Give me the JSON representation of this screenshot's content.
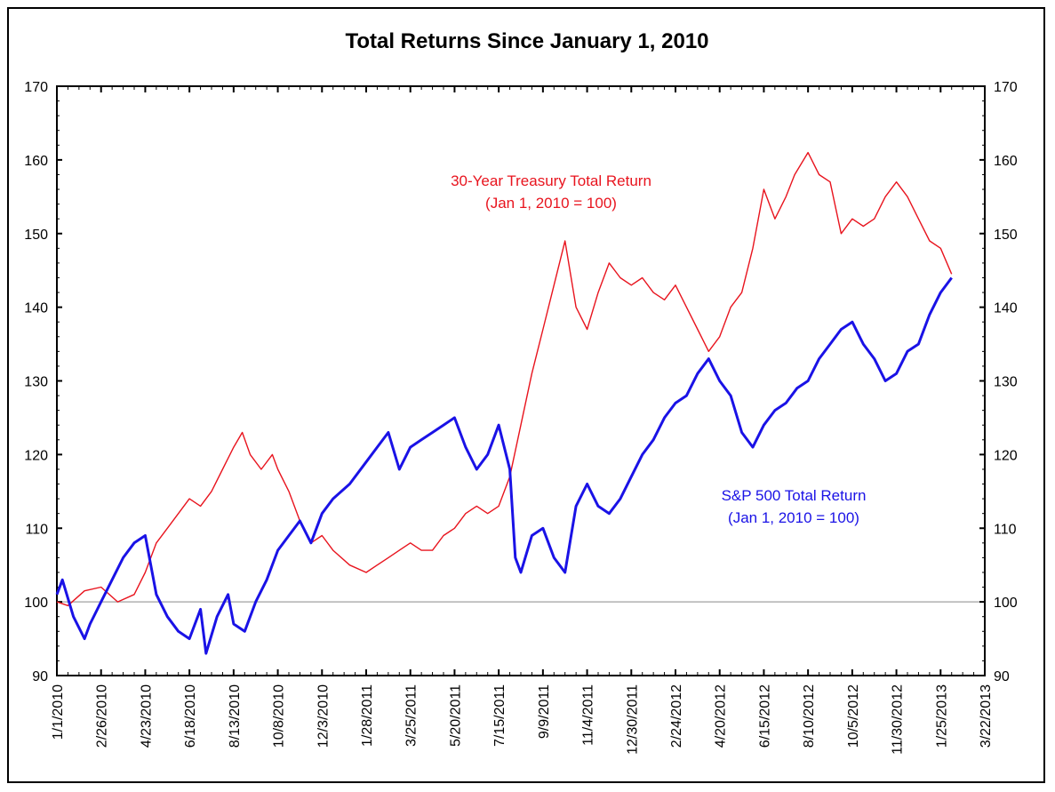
{
  "chart_data": {
    "type": "line",
    "title": "Total Returns Since January 1, 2010",
    "xlabel": "",
    "ylabel": "",
    "x_ticks": [
      "1/1/2010",
      "2/26/2010",
      "4/23/2010",
      "6/18/2010",
      "8/13/2010",
      "10/8/2010",
      "12/3/2010",
      "1/28/2011",
      "3/25/2011",
      "5/20/2011",
      "7/15/2011",
      "9/9/2011",
      "11/4/2011",
      "12/30/2011",
      "2/24/2012",
      "4/20/2012",
      "6/15/2012",
      "8/10/2012",
      "10/5/2012",
      "11/30/2012",
      "1/25/2013",
      "3/22/2013"
    ],
    "xlim": [
      "2010-01-01",
      "2013-03-22"
    ],
    "y_ticks": [
      90,
      100,
      110,
      120,
      130,
      140,
      150,
      160,
      170
    ],
    "ylim": [
      90,
      170
    ],
    "reference_line": 100,
    "grid": false,
    "axes": [
      "left",
      "right"
    ],
    "annotations": [
      {
        "lines": [
          "30-Year Treasury Total Return",
          "(Jan 1, 2010 = 100)"
        ],
        "color": "#e8141e"
      },
      {
        "lines": [
          "S&P 500 Total Return",
          "(Jan 1, 2010 = 100)"
        ],
        "color": "#1a12e6"
      }
    ],
    "series": [
      {
        "name": "30-Year Treasury Total Return",
        "color": "#e8141e",
        "x": [
          "2010-01-01",
          "2010-01-15",
          "2010-02-05",
          "2010-02-26",
          "2010-03-19",
          "2010-04-09",
          "2010-04-23",
          "2010-05-07",
          "2010-05-21",
          "2010-06-04",
          "2010-06-18",
          "2010-07-02",
          "2010-07-16",
          "2010-07-30",
          "2010-08-13",
          "2010-08-24",
          "2010-09-03",
          "2010-09-17",
          "2010-10-01",
          "2010-10-08",
          "2010-10-22",
          "2010-11-05",
          "2010-11-19",
          "2010-12-03",
          "2010-12-17",
          "2011-01-07",
          "2011-01-28",
          "2011-02-11",
          "2011-02-25",
          "2011-03-11",
          "2011-03-25",
          "2011-04-08",
          "2011-04-22",
          "2011-05-06",
          "2011-05-20",
          "2011-06-03",
          "2011-06-17",
          "2011-07-01",
          "2011-07-15",
          "2011-07-29",
          "2011-08-12",
          "2011-08-26",
          "2011-09-09",
          "2011-09-23",
          "2011-10-07",
          "2011-10-21",
          "2011-11-04",
          "2011-11-18",
          "2011-12-02",
          "2011-12-16",
          "2011-12-30",
          "2012-01-13",
          "2012-01-27",
          "2012-02-10",
          "2012-02-24",
          "2012-03-09",
          "2012-03-23",
          "2012-04-06",
          "2012-04-20",
          "2012-05-04",
          "2012-05-18",
          "2012-06-01",
          "2012-06-15",
          "2012-06-29",
          "2012-07-13",
          "2012-07-24",
          "2012-08-10",
          "2012-08-24",
          "2012-09-07",
          "2012-09-21",
          "2012-10-05",
          "2012-10-19",
          "2012-11-02",
          "2012-11-16",
          "2012-11-30",
          "2012-12-14",
          "2012-12-28",
          "2013-01-11",
          "2013-01-25",
          "2013-02-08"
        ],
        "values": [
          100,
          99.5,
          101.5,
          102,
          100,
          101,
          104,
          108,
          110,
          112,
          114,
          113,
          115,
          118,
          121,
          123,
          120,
          118,
          120,
          118,
          115,
          111,
          108,
          109,
          107,
          105,
          104,
          105,
          106,
          107,
          108,
          107,
          107,
          109,
          110,
          112,
          113,
          112,
          113,
          117,
          124,
          131,
          137,
          143,
          149,
          140,
          137,
          142,
          146,
          144,
          143,
          144,
          142,
          141,
          143,
          140,
          137,
          134,
          136,
          140,
          142,
          148,
          156,
          152,
          155,
          158,
          161,
          158,
          157,
          150,
          152,
          151,
          152,
          155,
          157,
          155,
          152,
          149,
          148,
          144.5
        ]
      },
      {
        "name": "S&P 500 Total Return",
        "color": "#1a12e6",
        "x": [
          "2010-01-01",
          "2010-01-08",
          "2010-01-22",
          "2010-02-05",
          "2010-02-12",
          "2010-02-26",
          "2010-03-12",
          "2010-03-26",
          "2010-04-09",
          "2010-04-23",
          "2010-05-07",
          "2010-05-21",
          "2010-06-04",
          "2010-06-18",
          "2010-07-02",
          "2010-07-09",
          "2010-07-23",
          "2010-08-06",
          "2010-08-13",
          "2010-08-27",
          "2010-09-10",
          "2010-09-24",
          "2010-10-08",
          "2010-10-22",
          "2010-11-05",
          "2010-11-19",
          "2010-12-03",
          "2010-12-17",
          "2011-01-07",
          "2011-01-28",
          "2011-02-11",
          "2011-02-25",
          "2011-03-11",
          "2011-03-25",
          "2011-04-08",
          "2011-04-22",
          "2011-05-06",
          "2011-05-20",
          "2011-06-03",
          "2011-06-17",
          "2011-07-01",
          "2011-07-15",
          "2011-07-29",
          "2011-08-05",
          "2011-08-12",
          "2011-08-26",
          "2011-09-09",
          "2011-09-23",
          "2011-10-07",
          "2011-10-21",
          "2011-11-04",
          "2011-11-18",
          "2011-12-02",
          "2011-12-16",
          "2011-12-30",
          "2012-01-13",
          "2012-01-27",
          "2012-02-10",
          "2012-02-24",
          "2012-03-09",
          "2012-03-23",
          "2012-04-06",
          "2012-04-20",
          "2012-05-04",
          "2012-05-18",
          "2012-06-01",
          "2012-06-15",
          "2012-06-29",
          "2012-07-13",
          "2012-07-27",
          "2012-08-10",
          "2012-08-24",
          "2012-09-07",
          "2012-09-21",
          "2012-10-05",
          "2012-10-19",
          "2012-11-02",
          "2012-11-16",
          "2012-11-30",
          "2012-12-14",
          "2012-12-28",
          "2013-01-11",
          "2013-01-25",
          "2013-02-08"
        ],
        "values": [
          101,
          103,
          98,
          95,
          97,
          100,
          103,
          106,
          108,
          109,
          101,
          98,
          96,
          95,
          99,
          93,
          98,
          101,
          97,
          96,
          100,
          103,
          107,
          109,
          111,
          108,
          112,
          114,
          116,
          119,
          121,
          123,
          118,
          121,
          122,
          123,
          124,
          125,
          121,
          118,
          120,
          124,
          118,
          106,
          104,
          109,
          110,
          106,
          104,
          113,
          116,
          113,
          112,
          114,
          117,
          120,
          122,
          125,
          127,
          128,
          131,
          133,
          130,
          128,
          123,
          121,
          124,
          126,
          127,
          129,
          130,
          133,
          135,
          137,
          138,
          135,
          133,
          130,
          131,
          134,
          135,
          139,
          142,
          144
        ]
      }
    ]
  }
}
